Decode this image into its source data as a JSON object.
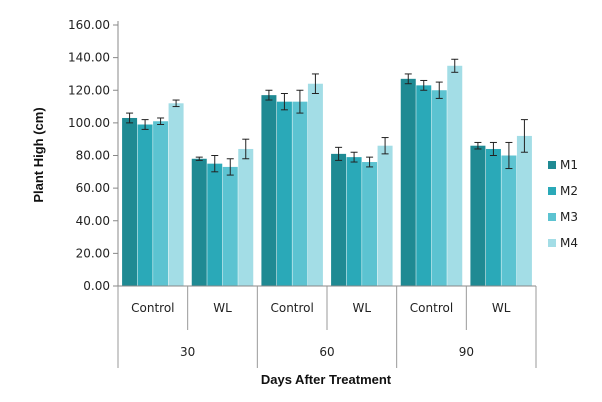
{
  "chart_data": {
    "type": "bar",
    "title": "",
    "ylabel": "Plant High (cm)",
    "xlabel": "Days After Treatment",
    "ylim": [
      0,
      160
    ],
    "yticks": [
      "0.00",
      "20.00",
      "40.00",
      "60.00",
      "80.00",
      "100.00",
      "120.00",
      "140.00",
      "160.00"
    ],
    "groups": [
      {
        "day": "30",
        "categories": [
          "Control",
          "WL"
        ]
      },
      {
        "day": "60",
        "categories": [
          "Control",
          "WL"
        ]
      },
      {
        "day": "90",
        "categories": [
          "Control",
          "WL"
        ]
      }
    ],
    "categories": [
      "Control",
      "WL",
      "Control",
      "WL",
      "Control",
      "WL"
    ],
    "series": [
      {
        "name": "M1",
        "color": "#1f8a93",
        "values": [
          103,
          78,
          117,
          81,
          127,
          86
        ],
        "errors": [
          3,
          1,
          3,
          4,
          3,
          2
        ]
      },
      {
        "name": "M2",
        "color": "#2aa9b8",
        "values": [
          99,
          75,
          113,
          79,
          123,
          84
        ],
        "errors": [
          3,
          5,
          5,
          3,
          3,
          4
        ]
      },
      {
        "name": "M3",
        "color": "#5cc3d1",
        "values": [
          101,
          73,
          113,
          76,
          120,
          80
        ],
        "errors": [
          2,
          5,
          7,
          3,
          5,
          8
        ]
      },
      {
        "name": "M4",
        "color": "#a3dde6",
        "values": [
          112,
          84,
          124,
          86,
          135,
          92
        ],
        "errors": [
          2,
          6,
          6,
          5,
          4,
          10
        ]
      }
    ],
    "legend_position": "right",
    "grid": false
  }
}
